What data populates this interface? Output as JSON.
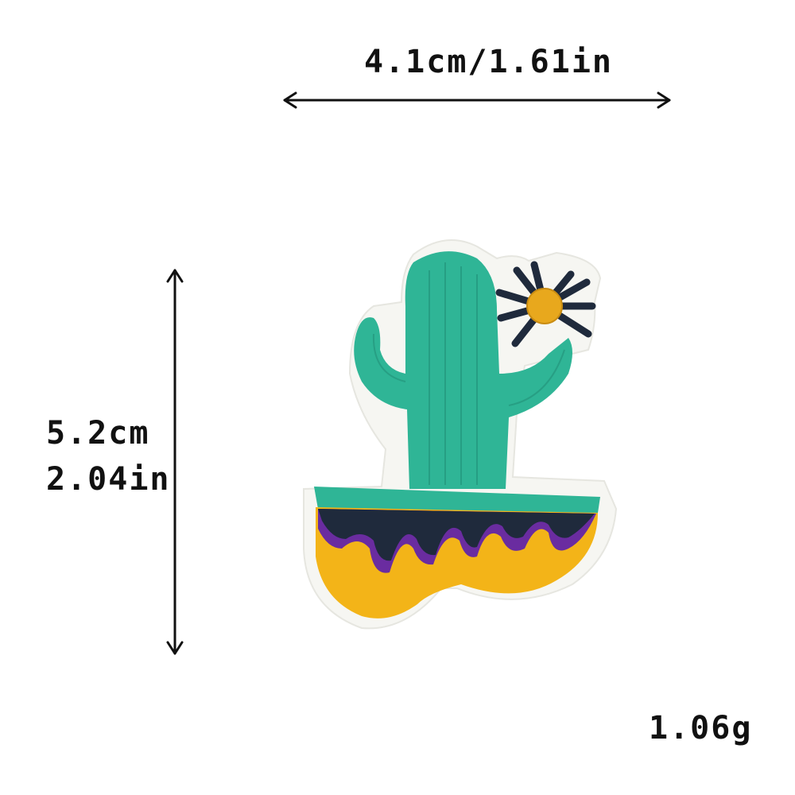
{
  "dimensions": {
    "width_label": "4.1cm/1.61in",
    "height_cm": "5.2cm",
    "height_in": "2.04in",
    "weight_label": "1.06g"
  },
  "colors": {
    "felt": "#f6f6f2",
    "cactus": "#2fb596",
    "cactus_dark": "#23957c",
    "flower_petals": "#1f2a3c",
    "flower_center": "#e8a81d",
    "pot_dark": "#1f2a3c",
    "pot_purple": "#6a2ca0",
    "pot_yellow": "#f3b418",
    "arrow": "#111111"
  }
}
